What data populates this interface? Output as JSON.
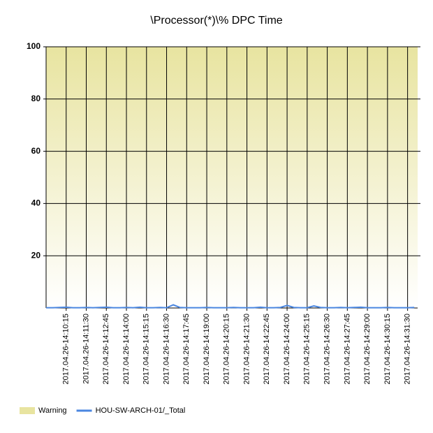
{
  "chart_data": {
    "type": "line",
    "title": "\\Processor(*)\\% DPC Time",
    "categories": [
      null,
      null,
      null,
      "2017.04.26-14:10:15",
      null,
      null,
      "2017.04.26-14:11:30",
      null,
      null,
      "2017.04.26-14:12:45",
      null,
      null,
      "2017.04.26-14:14:00",
      null,
      null,
      "2017.04.26-14:15:15",
      null,
      null,
      "2017.04.26-14:16:30",
      null,
      null,
      "2017.04.26-14:17:45",
      null,
      null,
      "2017.04.26-14:19:00",
      null,
      null,
      "2017.04.26-14:20:15",
      null,
      null,
      "2017.04.26-14:21:30",
      null,
      null,
      "2017.04.26-14:22:45",
      null,
      null,
      "2017.04.26-14:24:00",
      null,
      null,
      "2017.04.26-14:25:15",
      null,
      null,
      "2017.04.26-14:26:30",
      null,
      null,
      "2017.04.26-14:27:45",
      null,
      null,
      "2017.04.26-14:29:00",
      null,
      null,
      "2017.04.26-14:30:15",
      null,
      null,
      "2017.04.26-14:31:30",
      null
    ],
    "series": [
      {
        "name": "HOU-SW-ARCH-01/_Total",
        "color": "#4a86e0",
        "values": [
          0.1,
          0.1,
          0.2,
          0.3,
          0.1,
          0.1,
          0.2,
          0.1,
          0.2,
          0.3,
          0.1,
          0.1,
          0.2,
          0.1,
          0.3,
          0.1,
          0.1,
          0.2,
          0.1,
          1.2,
          0.2,
          0.1,
          0.1,
          0.1,
          0.2,
          0.1,
          0.1,
          0.1,
          0.2,
          0.1,
          0.1,
          0.1,
          0.3,
          0.1,
          0.1,
          0.2,
          1.0,
          0.2,
          0.1,
          0.1,
          0.8,
          0.2,
          0.1,
          0.1,
          0.2,
          0.1,
          0.2,
          0.3,
          0.1,
          0.1,
          0.1,
          0.2,
          0.1,
          0.1,
          0.1,
          0.2
        ]
      }
    ],
    "bands": [
      {
        "name": "Warning",
        "from": 0,
        "to": 100,
        "color": "#e8e4a0"
      }
    ],
    "ylim": [
      0,
      100
    ],
    "yticks": [
      20,
      40,
      60,
      80,
      100
    ],
    "grid": true
  }
}
